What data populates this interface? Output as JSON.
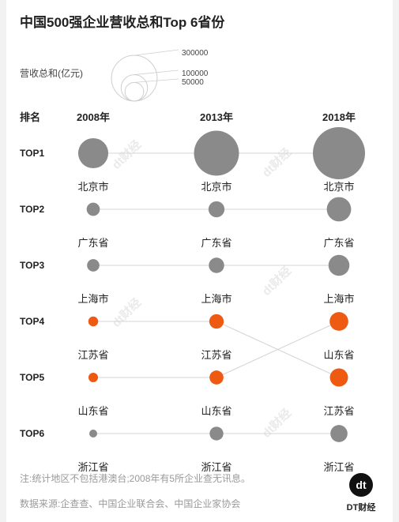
{
  "chart_data": {
    "type": "bubble-rank",
    "title": "中国500强企业营收总和Top 6省份",
    "legend": {
      "label": "营收总和(亿元)",
      "sizes": [
        {
          "value": 300000,
          "label": "300000"
        },
        {
          "value": 100000,
          "label": "100000"
        },
        {
          "value": 50000,
          "label": "50000"
        }
      ]
    },
    "rank_header": "排名",
    "years": [
      "2008年",
      "2013年",
      "2018年"
    ],
    "ranks": [
      "TOP1",
      "TOP2",
      "TOP3",
      "TOP4",
      "TOP5",
      "TOP6"
    ],
    "columns": [
      [
        {
          "province": "北京市",
          "value": 130000
        },
        {
          "province": "广东省",
          "value": 25000
        },
        {
          "province": "上海市",
          "value": 22000
        },
        {
          "province": "江苏省",
          "value": 14000
        },
        {
          "province": "山东省",
          "value": 13000
        },
        {
          "province": "浙江省",
          "value": 9000
        }
      ],
      [
        {
          "province": "北京市",
          "value": 290000
        },
        {
          "province": "广东省",
          "value": 37000
        },
        {
          "province": "上海市",
          "value": 34000
        },
        {
          "province": "江苏省",
          "value": 30000
        },
        {
          "province": "山东省",
          "value": 28000
        },
        {
          "province": "浙江省",
          "value": 27000
        }
      ],
      [
        {
          "province": "北京市",
          "value": 390000
        },
        {
          "province": "广东省",
          "value": 85000
        },
        {
          "province": "上海市",
          "value": 63000
        },
        {
          "province": "山东省",
          "value": 50000
        },
        {
          "province": "江苏省",
          "value": 47000
        },
        {
          "province": "浙江省",
          "value": 42000
        }
      ]
    ],
    "highlight": [
      "江苏省",
      "山东省"
    ],
    "colors": {
      "normal": "#8a8a8a",
      "highlight": "#ee5a12",
      "line": "#d4d4d4"
    }
  },
  "notes": {
    "note": "注:统计地区不包括港澳台;2008年有5所企业查无讯息。",
    "source": "数据来源:企查查、中国企业联合会、中国企业家协会"
  },
  "brand": {
    "logo_glyph": "dt",
    "name": "DT财经",
    "watermark": "dt财经"
  }
}
